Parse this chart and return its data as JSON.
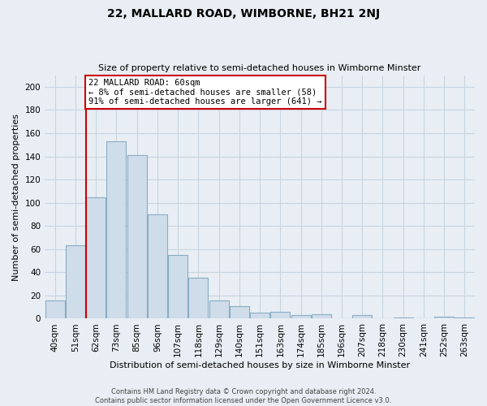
{
  "title": "22, MALLARD ROAD, WIMBORNE, BH21 2NJ",
  "subtitle": "Size of property relative to semi-detached houses in Wimborne Minster",
  "xlabel": "Distribution of semi-detached houses by size in Wimborne Minster",
  "ylabel": "Number of semi-detached properties",
  "bar_labels": [
    "40sqm",
    "51sqm",
    "62sqm",
    "73sqm",
    "85sqm",
    "96sqm",
    "107sqm",
    "118sqm",
    "129sqm",
    "140sqm",
    "151sqm",
    "163sqm",
    "174sqm",
    "185sqm",
    "196sqm",
    "207sqm",
    "218sqm",
    "230sqm",
    "241sqm",
    "252sqm",
    "263sqm"
  ],
  "bar_heights": [
    16,
    63,
    105,
    153,
    141,
    90,
    55,
    35,
    16,
    11,
    5,
    6,
    3,
    4,
    0,
    3,
    0,
    1,
    0,
    2,
    1
  ],
  "bar_color": "#cfdcea",
  "bar_edge_color": "#89adc4",
  "ylim": [
    0,
    210
  ],
  "yticks": [
    0,
    20,
    40,
    60,
    80,
    100,
    120,
    140,
    160,
    180,
    200
  ],
  "property_line_bar_index": 2,
  "property_label": "22 MALLARD ROAD: 60sqm",
  "annotation_line1": "← 8% of semi-detached houses are smaller (58)",
  "annotation_line2": "91% of semi-detached houses are larger (641) →",
  "footer_line1": "Contains HM Land Registry data © Crown copyright and database right 2024.",
  "footer_line2": "Contains public sector information licensed under the Open Government Licence v3.0.",
  "annotation_box_facecolor": "#ffffff",
  "annotation_box_edgecolor": "#cc0000",
  "property_line_color": "#cc0000",
  "grid_color": "#c8d4e0",
  "background_color": "#e8eef4",
  "title_fontsize": 10,
  "subtitle_fontsize": 8,
  "xlabel_fontsize": 8,
  "ylabel_fontsize": 8,
  "tick_fontsize": 7.5,
  "annotation_fontsize": 7.5,
  "footer_fontsize": 6
}
